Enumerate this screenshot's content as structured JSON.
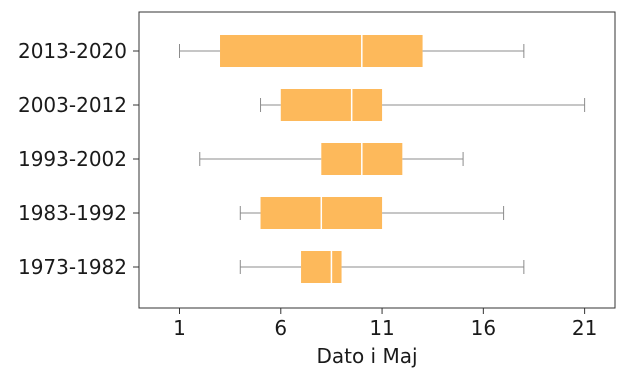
{
  "chart_data": {
    "type": "boxplot",
    "orientation": "horizontal",
    "title": "",
    "xlabel": "Dato i Maj",
    "ylabel": "",
    "xlim": [
      -1,
      22.5
    ],
    "xticks": [
      1,
      6,
      11,
      16,
      21
    ],
    "grid": false,
    "box_color": "#fdb95b",
    "median_color": "#ffffff",
    "whisker_color": "#8c8c8c",
    "categories": [
      "2013-2020",
      "2003-2012",
      "1993-2002",
      "1983-1992",
      "1973-1982"
    ],
    "boxes": [
      {
        "label": "2013-2020",
        "min": 1,
        "q1": 3,
        "median": 10,
        "q3": 13,
        "max": 18
      },
      {
        "label": "2003-2012",
        "min": 5,
        "q1": 6,
        "median": 9.5,
        "q3": 11,
        "max": 21
      },
      {
        "label": "1993-2002",
        "min": 2,
        "q1": 8,
        "median": 10,
        "q3": 12,
        "max": 15
      },
      {
        "label": "1983-1992",
        "min": 4,
        "q1": 5,
        "median": 8,
        "q3": 11,
        "max": 17
      },
      {
        "label": "1973-1982",
        "min": 4,
        "q1": 7,
        "median": 8.5,
        "q3": 9,
        "max": 18
      }
    ]
  }
}
